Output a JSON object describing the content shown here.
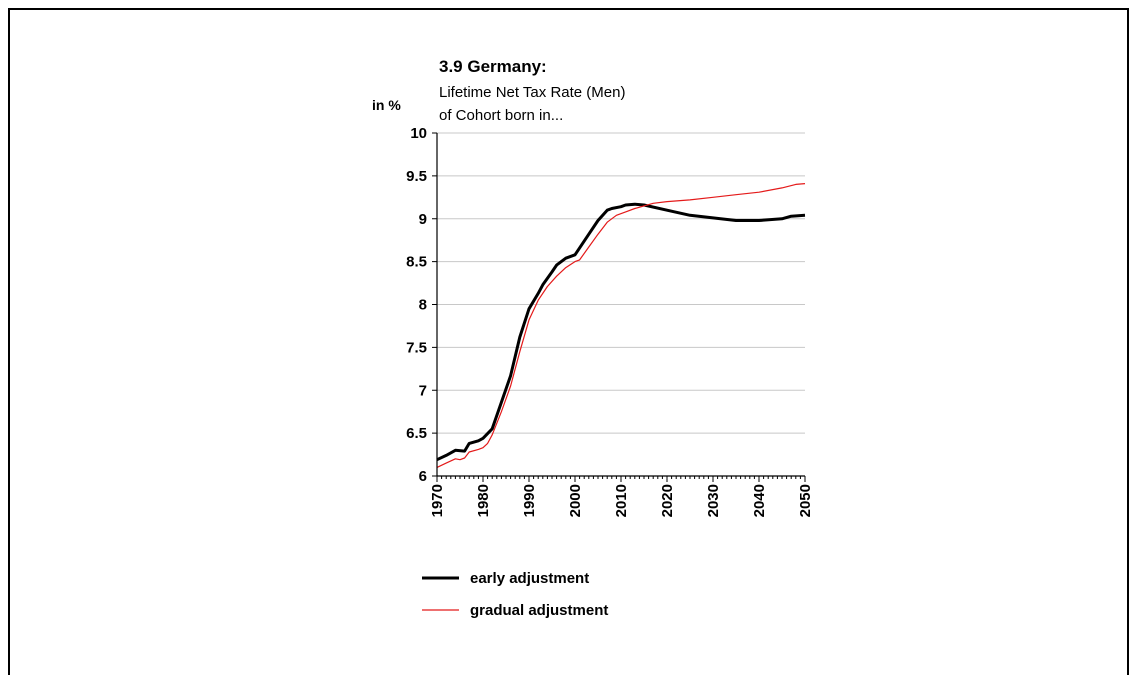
{
  "chart_data": {
    "type": "line",
    "title": "3.9 Germany:",
    "subtitle_lines": [
      "Lifetime Net Tax Rate (Men)",
      "of Cohort born in..."
    ],
    "ylabel": "in %",
    "xlabel": "",
    "xlim": [
      1970,
      2050
    ],
    "ylim": [
      6,
      10
    ],
    "x_ticks": [
      1970,
      1980,
      1990,
      2000,
      2010,
      2020,
      2030,
      2040,
      2050
    ],
    "y_ticks": [
      6,
      6.5,
      7,
      7.5,
      8,
      8.5,
      9,
      9.5,
      10
    ],
    "y_tick_labels": [
      "6",
      "6.5",
      "7",
      "7.5",
      "8",
      "8.5",
      "9",
      "9.5",
      "10"
    ],
    "grid": "horizontal",
    "legend_position": "bottom",
    "series": [
      {
        "name": "early adjustment",
        "color": "#000000",
        "x": [
          1970,
          1972,
          1974,
          1976,
          1977,
          1979,
          1980,
          1982,
          1984,
          1986,
          1988,
          1990,
          1992,
          1993,
          1995,
          1996,
          1998,
          2000,
          2001,
          2003,
          2005,
          2007,
          2008,
          2010,
          2011,
          2013,
          2015,
          2020,
          2025,
          2030,
          2035,
          2040,
          2045,
          2047,
          2050
        ],
        "values": [
          6.19,
          6.24,
          6.3,
          6.29,
          6.38,
          6.41,
          6.44,
          6.55,
          6.86,
          7.17,
          7.62,
          7.95,
          8.13,
          8.23,
          8.38,
          8.46,
          8.54,
          8.58,
          8.66,
          8.82,
          8.98,
          9.1,
          9.12,
          9.14,
          9.16,
          9.17,
          9.16,
          9.1,
          9.04,
          9.01,
          8.98,
          8.98,
          9.0,
          9.03,
          9.04
        ]
      },
      {
        "name": "gradual adjustment",
        "color": "#e41a1a",
        "x": [
          1970,
          1972,
          1974,
          1975,
          1976,
          1977,
          1979,
          1980,
          1981,
          1982,
          1984,
          1986,
          1988,
          1990,
          1992,
          1994,
          1996,
          1998,
          2000,
          2001,
          2003,
          2005,
          2007,
          2009,
          2011,
          2013,
          2015,
          2017,
          2020,
          2025,
          2030,
          2035,
          2040,
          2045,
          2048,
          2050
        ],
        "values": [
          6.1,
          6.15,
          6.2,
          6.19,
          6.21,
          6.28,
          6.31,
          6.33,
          6.38,
          6.48,
          6.75,
          7.05,
          7.45,
          7.82,
          8.05,
          8.21,
          8.33,
          8.43,
          8.5,
          8.52,
          8.67,
          8.82,
          8.96,
          9.04,
          9.08,
          9.12,
          9.15,
          9.18,
          9.2,
          9.22,
          9.25,
          9.28,
          9.31,
          9.36,
          9.4,
          9.41
        ]
      }
    ]
  }
}
